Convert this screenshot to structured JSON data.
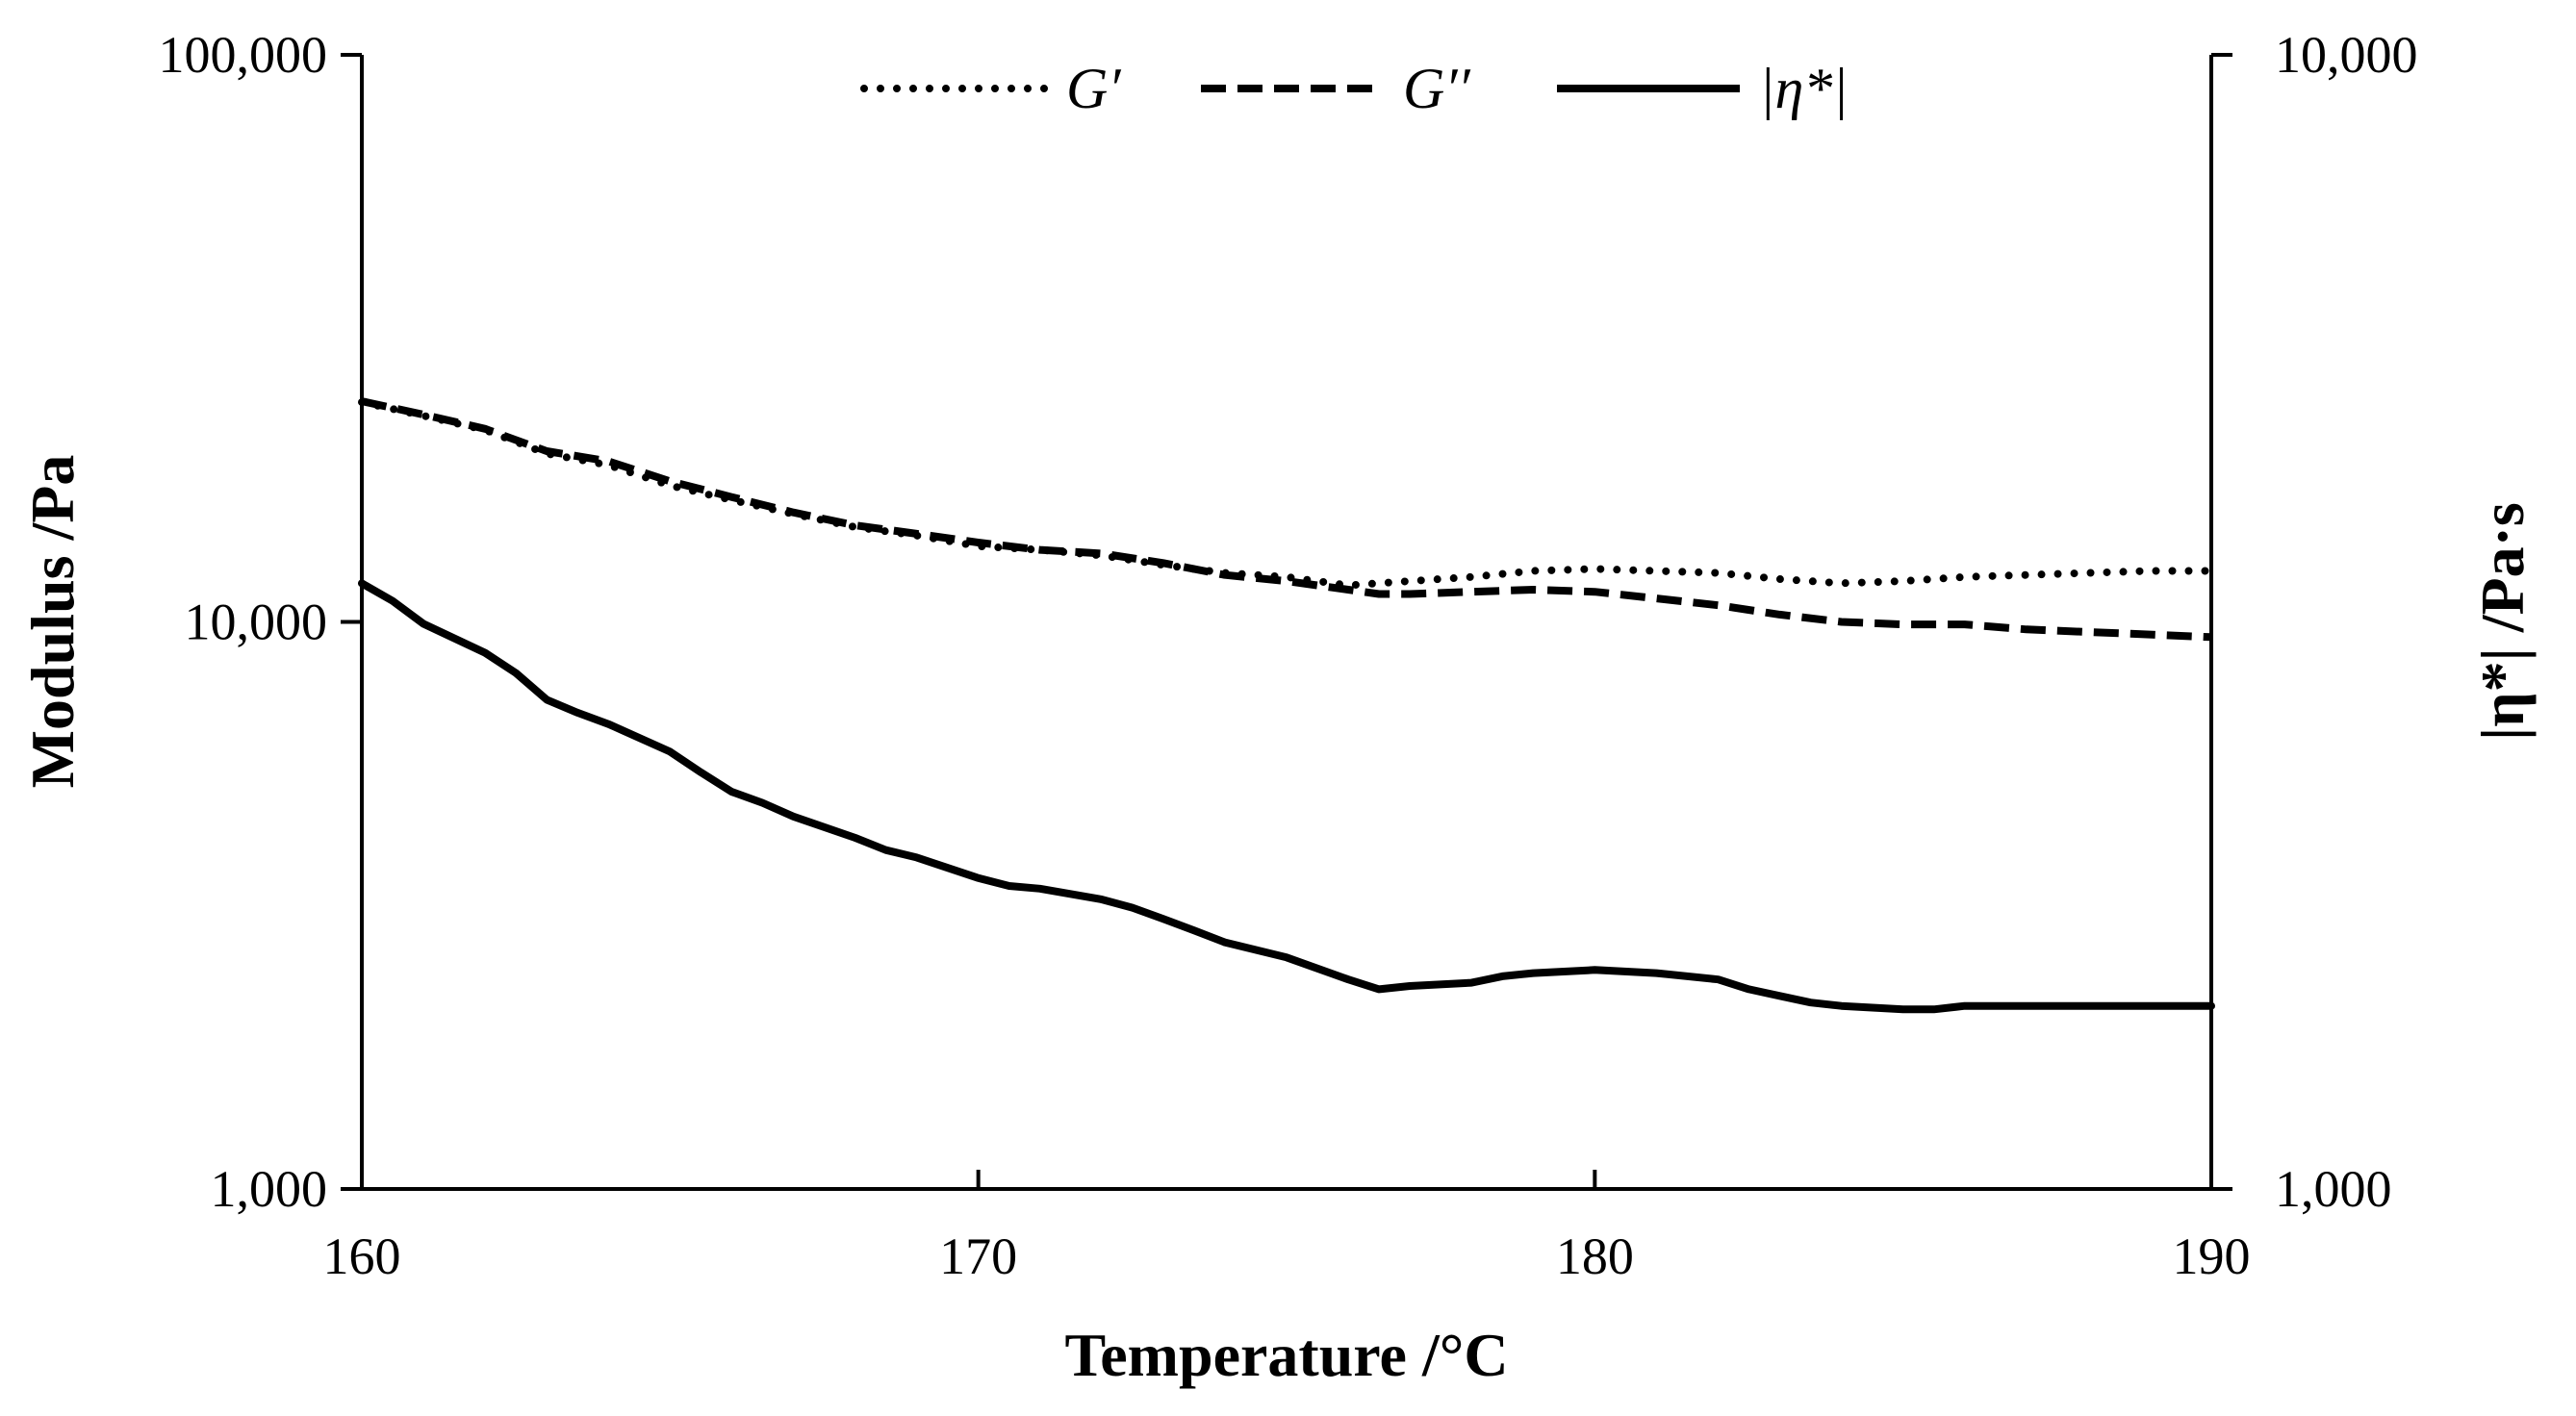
{
  "chart_data": {
    "type": "line",
    "title": "",
    "xlabel": "Temperature /°C",
    "ylabel": "Modulus /Pa",
    "y2label": "|η*| /Pa·s",
    "xlim": [
      160,
      190
    ],
    "ylim": [
      1000,
      100000
    ],
    "y2lim": [
      1000,
      10000
    ],
    "yscale": "log",
    "y2scale": "log",
    "grid": false,
    "legend_position": "top-center",
    "x_ticks": [
      "160",
      "170",
      "180",
      "190"
    ],
    "y_ticks": [
      "1,000",
      "10,000",
      "100,000"
    ],
    "y2_ticks": [
      "1,000",
      "10,000"
    ],
    "series": [
      {
        "name": "G′",
        "axis": "left",
        "style": "dotted",
        "color": "#000000",
        "x": [
          160,
          161,
          162,
          163,
          164,
          165,
          166,
          167,
          168,
          169,
          170,
          171,
          172,
          173,
          174,
          175,
          176,
          176.5,
          177,
          178,
          179,
          180,
          181,
          182,
          183,
          184,
          185,
          186,
          187,
          188,
          189,
          190
        ],
        "values": [
          24400,
          23100,
          21800,
          19800,
          18900,
          17400,
          16400,
          15500,
          14700,
          14200,
          13600,
          13400,
          13100,
          12600,
          12200,
          12000,
          11600,
          11700,
          11800,
          12000,
          12300,
          12400,
          12300,
          12200,
          11900,
          11700,
          11800,
          12000,
          12100,
          12200,
          12300,
          12300
        ]
      },
      {
        "name": "G′′",
        "axis": "left",
        "style": "dashed",
        "color": "#000000",
        "x": [
          160,
          161,
          162,
          163,
          164,
          165,
          166,
          167,
          168,
          169,
          170,
          171,
          172,
          173,
          174,
          175,
          176,
          176.5,
          177,
          178,
          179,
          180,
          181,
          182,
          183,
          184,
          185,
          186,
          187,
          188,
          189,
          190
        ],
        "values": [
          24500,
          23200,
          21900,
          20000,
          19200,
          17700,
          16600,
          15600,
          14800,
          14300,
          13800,
          13400,
          13200,
          12700,
          12100,
          11800,
          11400,
          11200,
          11200,
          11300,
          11400,
          11300,
          11000,
          10700,
          10300,
          10000,
          9900,
          9900,
          9700,
          9600,
          9500,
          9400
        ]
      },
      {
        "name": "|η*|",
        "axis": "right",
        "style": "solid",
        "color": "#000000",
        "x": [
          160,
          160.5,
          161,
          162,
          162.5,
          163,
          163.5,
          164,
          165,
          165.5,
          166,
          166.5,
          167,
          168,
          168.5,
          169,
          170,
          170.5,
          171,
          172,
          172.5,
          173,
          173.5,
          174,
          175,
          176,
          176.5,
          177,
          178,
          178.5,
          179,
          180,
          181,
          182,
          182.5,
          183,
          183.5,
          184,
          185,
          185.5,
          186,
          187,
          187.5,
          188,
          189,
          190
        ],
        "values": [
          3420,
          3300,
          3150,
          2970,
          2850,
          2700,
          2630,
          2570,
          2430,
          2330,
          2240,
          2190,
          2130,
          2040,
          1990,
          1960,
          1880,
          1850,
          1840,
          1800,
          1770,
          1730,
          1690,
          1650,
          1600,
          1530,
          1500,
          1510,
          1520,
          1540,
          1550,
          1560,
          1550,
          1530,
          1500,
          1480,
          1460,
          1450,
          1440,
          1440,
          1450,
          1450,
          1450,
          1450,
          1450,
          1450
        ]
      }
    ]
  }
}
